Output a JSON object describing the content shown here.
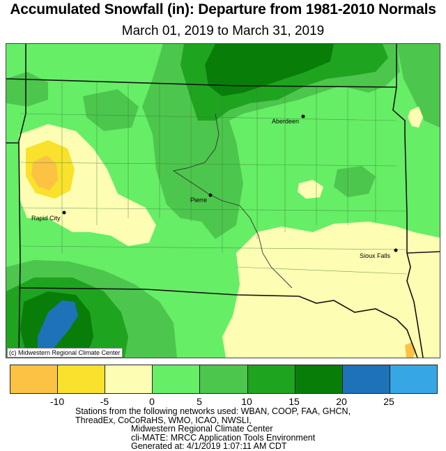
{
  "title": "Accumulated Snowfall (in): Departure from 1981-2010 Normals",
  "subtitle": "March 01, 2019 to March 31, 2019",
  "map": {
    "credit": "(c) Midwestern Regional Climate Center",
    "cities": [
      {
        "name": "Aberdeen"
      },
      {
        "name": "Pierre"
      },
      {
        "name": "Rapid City"
      },
      {
        "name": "Sioux Falls"
      }
    ]
  },
  "legend": {
    "colors": [
      "#fcc244",
      "#f9e12c",
      "#fdfdb3",
      "#66ee66",
      "#4dc64d",
      "#1fa41f",
      "#087e09",
      "#1d72b8",
      "#36a6e4"
    ],
    "ticks": [
      "-10",
      "-5",
      "0",
      "5",
      "10",
      "15",
      "20",
      "25"
    ]
  },
  "notes": [
    "Stations from the following networks used: WBAN, COOP, FAA, GHCN,",
    "ThreadEx, CoCoRaHS, WMO, ICAO, NWSLI,",
    "Midwestern Regional Climate Center",
    "cli-MATE: MRCC Application Tools Environment",
    "Generated at: 4/1/2019 1:07:11 AM CDT"
  ]
}
